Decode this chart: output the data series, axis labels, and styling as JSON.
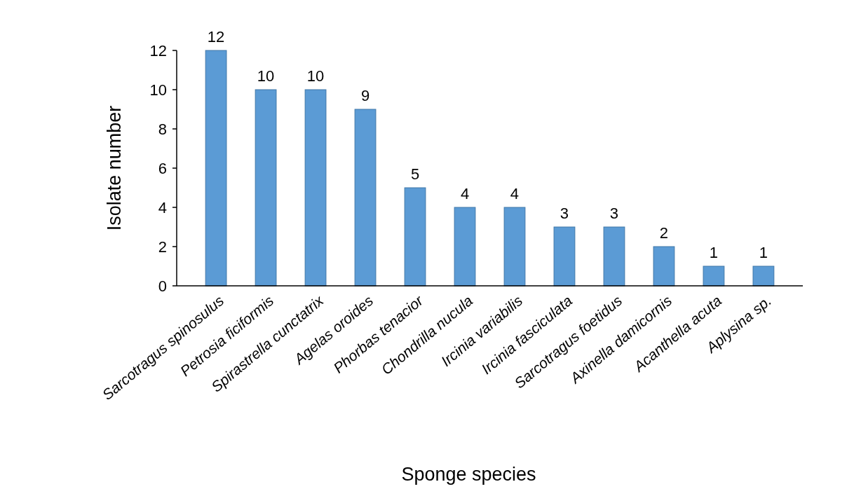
{
  "chart_data": {
    "type": "bar",
    "xlabel": "Sponge species",
    "ylabel": "Isolate number",
    "categories": [
      "Sarcotragus spinosulus",
      "Petrosia ficiformis",
      "Spirastrella cunctatrix",
      "Agelas oroides",
      "Phorbas tenacior",
      "Chondrilla nucula",
      "Ircinia variabilis",
      "Ircinia fasciculata",
      "Sarcotragus foetidus",
      "Axinella damicornis",
      "Acanthella acuta",
      "Aplysina sp."
    ],
    "values": [
      12,
      10,
      10,
      9,
      5,
      4,
      4,
      3,
      3,
      2,
      1,
      1
    ],
    "color": "#5b9bd5",
    "ylim": [
      0,
      12
    ],
    "yticks": [
      0,
      2,
      4,
      6,
      8,
      10,
      12
    ],
    "data_labels": true,
    "grid": false
  }
}
